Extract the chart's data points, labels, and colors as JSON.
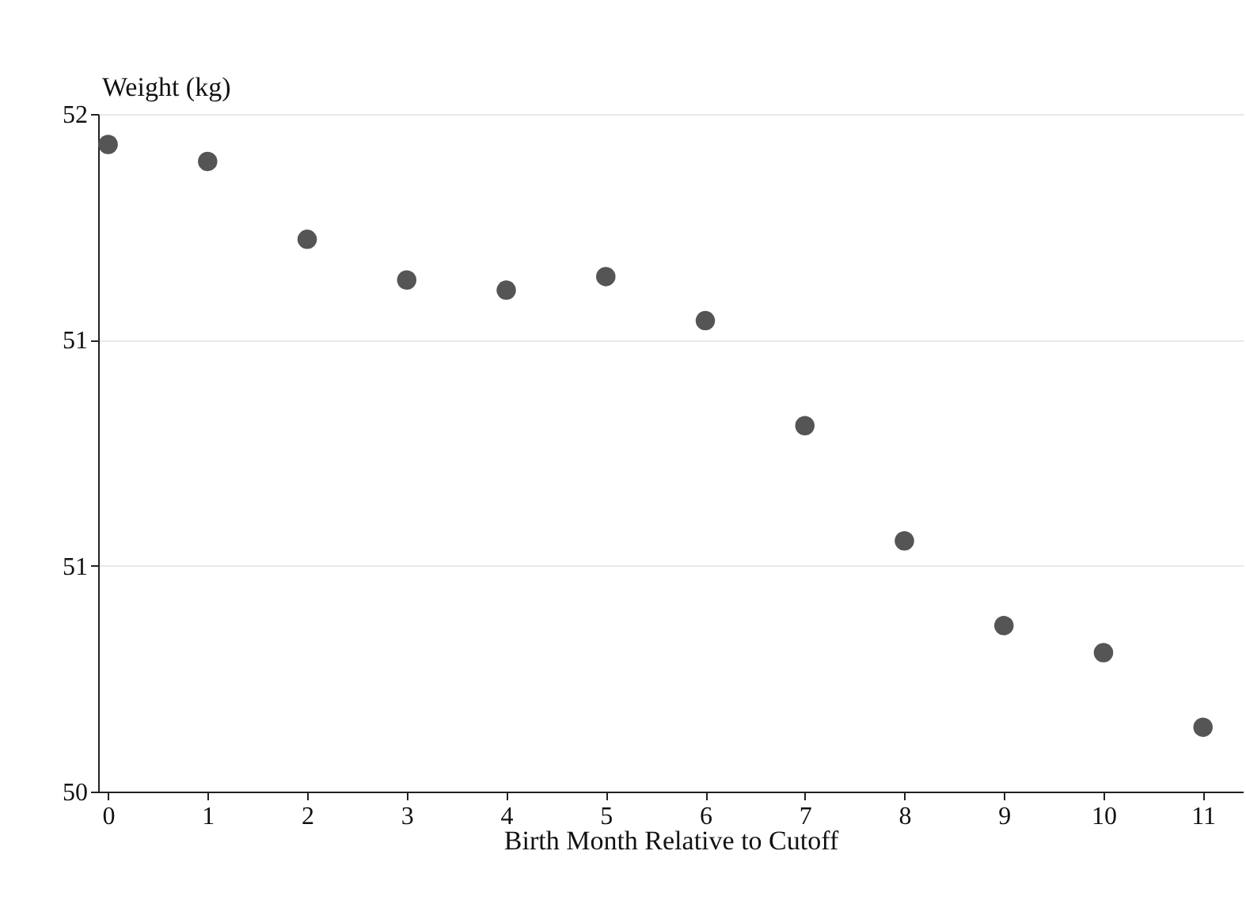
{
  "chart_data": {
    "type": "scatter",
    "xlabel": "Birth Month Relative to Cutoff",
    "ylabel": "Weight (kg)",
    "x": [
      0,
      1,
      2,
      3,
      4,
      5,
      6,
      7,
      8,
      9,
      10,
      11
    ],
    "series": [
      {
        "color": "#555555",
        "values": [
          51.91,
          51.86,
          51.63,
          51.51,
          51.48,
          51.52,
          51.39,
          51.08,
          50.74,
          50.49,
          50.41,
          50.19
        ]
      }
    ],
    "xlim": [
      -0.1,
      11.4
    ],
    "xticks": [
      0,
      1,
      2,
      3,
      4,
      5,
      6,
      7,
      8,
      9,
      10,
      11
    ],
    "ylim": [
      50,
      52
    ],
    "yticks": [
      50,
      {
        "value": 50.667,
        "label": "51"
      },
      {
        "value": 51.333,
        "label": "51"
      },
      52
    ],
    "grid": "y",
    "marker": "circle"
  }
}
